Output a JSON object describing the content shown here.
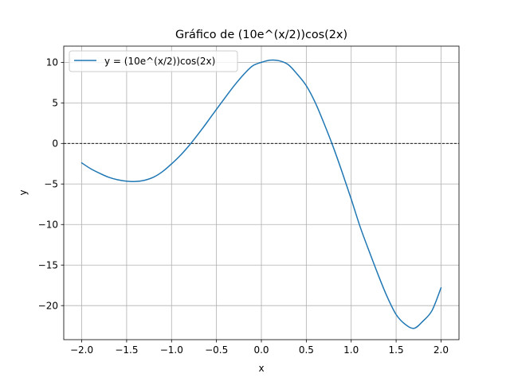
{
  "chart_data": {
    "type": "line",
    "title": "Gráfico de (10e^(x/2))cos(2x)",
    "xlabel": "x",
    "ylabel": "y",
    "xlim": [
      -2.2,
      2.2
    ],
    "ylim": [
      -24.2,
      12.0
    ],
    "grid": true,
    "legend_position": "upper-left",
    "x_ticks": [
      -2.0,
      -1.5,
      -1.0,
      -0.5,
      0.0,
      0.5,
      1.0,
      1.5,
      2.0
    ],
    "x_tick_labels": [
      "−2.0",
      "−1.5",
      "−1.0",
      "−0.5",
      "0.0",
      "0.5",
      "1.0",
      "1.5",
      "2.0"
    ],
    "y_ticks": [
      10,
      5,
      0,
      -5,
      -10,
      -15,
      -20
    ],
    "y_tick_labels": [
      "10",
      "5",
      "0",
      "−5",
      "−10",
      "−15",
      "−20"
    ],
    "reference_lines": [
      {
        "type": "horizontal",
        "y": 0,
        "style": "dashed",
        "color": "#000000"
      }
    ],
    "series": [
      {
        "name": "y = (10e^(x/2))cos(2x)",
        "color": "#1f77b4",
        "x": [
          -2.0,
          -1.9,
          -1.8,
          -1.7,
          -1.6,
          -1.5,
          -1.4,
          -1.3,
          -1.2,
          -1.1,
          -1.0,
          -0.9,
          -0.8,
          -0.7,
          -0.6,
          -0.5,
          -0.4,
          -0.3,
          -0.2,
          -0.1,
          0.0,
          0.1,
          0.2,
          0.3,
          0.4,
          0.5,
          0.6,
          0.7,
          0.8,
          0.9,
          1.0,
          1.1,
          1.2,
          1.3,
          1.4,
          1.5,
          1.6,
          1.7,
          1.8,
          1.9,
          2.0
        ],
        "values": [
          -2.4,
          -3.12,
          -3.68,
          -4.17,
          -4.48,
          -4.65,
          -4.69,
          -4.54,
          -4.16,
          -3.47,
          -2.52,
          -1.45,
          -0.2,
          1.2,
          2.68,
          4.21,
          5.7,
          7.16,
          8.47,
          9.55,
          10.0,
          10.27,
          10.19,
          9.71,
          8.53,
          7.12,
          5.03,
          2.4,
          -0.44,
          -3.57,
          -6.86,
          -10.3,
          -13.3,
          -16.2,
          -18.9,
          -21.1,
          -22.3,
          -22.8,
          -21.9,
          -20.6,
          -17.8
        ]
      }
    ]
  }
}
